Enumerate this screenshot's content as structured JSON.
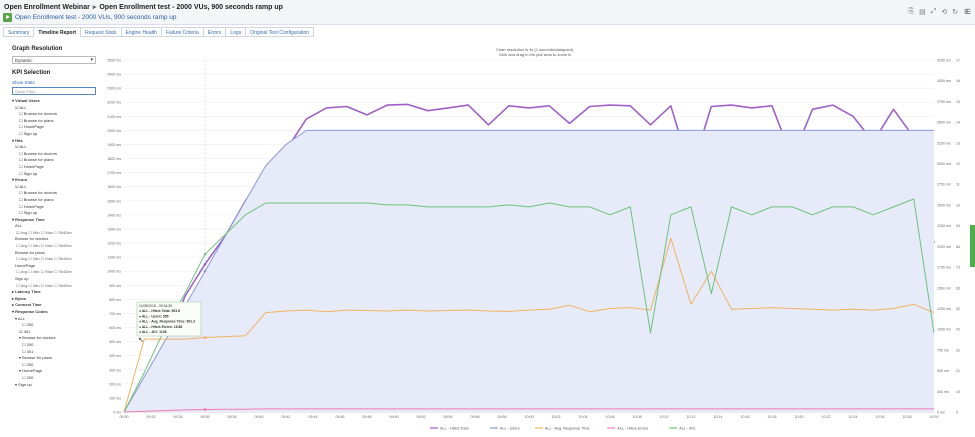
{
  "header": {
    "breadcrumb_root": "Open Enrollment Webinar",
    "breadcrumb_current": "Open Enrollment test - 2000 VUs, 900 seconds ramp up",
    "subtitle": "Open Enrollment test - 2000 VUs, 900 seconds ramp up"
  },
  "tabs": [
    {
      "label": "Summary",
      "active": false
    },
    {
      "label": "Timeline Report",
      "active": true
    },
    {
      "label": "Request Stats",
      "active": false
    },
    {
      "label": "Engine Health",
      "active": false
    },
    {
      "label": "Failure Criteria",
      "active": false
    },
    {
      "label": "Errors",
      "active": false
    },
    {
      "label": "Logs",
      "active": false
    },
    {
      "label": "Original Test Configuration",
      "active": false
    }
  ],
  "sidebar": {
    "graph_resolution_title": "Graph Resolution",
    "graph_resolution_value": "Dynamic",
    "kpi_title": "KPI Selection",
    "show_stats": "Show Stats",
    "filter_placeholder": "Quick Filter...",
    "tree": [
      {
        "t": "▾ Virtual Users",
        "c": "grp"
      },
      {
        "t": "☑ ALL",
        "c": "l1"
      },
      {
        "t": "☐ Browse for doctors",
        "c": "l2"
      },
      {
        "t": "☐ Browse for plans",
        "c": "l2"
      },
      {
        "t": "☐ HomePage",
        "c": "l2"
      },
      {
        "t": "☐ Sign up",
        "c": "l2"
      },
      {
        "t": "▾ Hits",
        "c": "grp"
      },
      {
        "t": "☑ ALL",
        "c": "l1"
      },
      {
        "t": "☐ Browse for doctors",
        "c": "l2"
      },
      {
        "t": "☐ Browse for plans",
        "c": "l2"
      },
      {
        "t": "☐ HomePage",
        "c": "l2"
      },
      {
        "t": "☐ Sign up",
        "c": "l2"
      },
      {
        "t": "▾ Errors",
        "c": "grp"
      },
      {
        "t": "☑ ALL",
        "c": "l1"
      },
      {
        "t": "☐ Browse for doctors",
        "c": "l2"
      },
      {
        "t": "☐ Browse for plans",
        "c": "l2"
      },
      {
        "t": "☐ HomePage",
        "c": "l2"
      },
      {
        "t": "☐ Sign up",
        "c": "l2"
      },
      {
        "t": "▾ Response Time",
        "c": "grp"
      },
      {
        "t": "ALL",
        "c": "l1"
      },
      {
        "t": "☑ Avg  ☐ Min  ☐ Max  ☐ StdDev",
        "c": "opts"
      },
      {
        "t": "Browse for doctors",
        "c": "l1"
      },
      {
        "t": "☐ Avg  ☐ Min  ☐ Max  ☐ StdDev",
        "c": "opts"
      },
      {
        "t": "Browse for plans",
        "c": "l1"
      },
      {
        "t": "☐ Avg  ☐ Min  ☐ Max  ☐ StdDev",
        "c": "opts"
      },
      {
        "t": "HomePage",
        "c": "l1"
      },
      {
        "t": "☐ Avg  ☐ Min  ☐ Max  ☐ StdDev",
        "c": "opts"
      },
      {
        "t": "Sign up",
        "c": "l1"
      },
      {
        "t": "☐ Avg  ☐ Min  ☐ Max  ☐ StdDev",
        "c": "opts"
      },
      {
        "t": "▸ Latency Time",
        "c": "grp"
      },
      {
        "t": "▸ Bytes",
        "c": "grp"
      },
      {
        "t": "▸ Connect Time",
        "c": "grp"
      },
      {
        "t": "▾ Response Codes",
        "c": "grp"
      },
      {
        "t": "▾ ALL",
        "c": "l1"
      },
      {
        "t": "☐ 200",
        "c": "l3"
      },
      {
        "t": "☑ 401",
        "c": "l2"
      },
      {
        "t": "▾ Browse for doctors",
        "c": "l2"
      },
      {
        "t": "☐ 200",
        "c": "l3"
      },
      {
        "t": "☐ 401",
        "c": "l3"
      },
      {
        "t": "▾ Browse for plans",
        "c": "l2"
      },
      {
        "t": "☐ 200",
        "c": "l3"
      },
      {
        "t": "▾ HomePage",
        "c": "l2"
      },
      {
        "t": "☐ 200",
        "c": "l3"
      },
      {
        "t": "▾ Sign up",
        "c": "l1"
      }
    ]
  },
  "chart_note": {
    "line1": "Chart resolution is 4s (1 seconds/datapoint).",
    "line2": "Click and drag in the plot area to zoom in"
  },
  "tooltip": {
    "lines": [
      "11/08/2018 - 09:34:35",
      "● ALL - Hits/s Total: 503.8",
      "● ALL - Users: 655",
      "● ALL - Avg. Response Time: 891.3",
      "● ALL - Hits/s Errors: 18.88",
      "● ALL - 401: 1138"
    ]
  },
  "chart_data": {
    "type": "line",
    "x_tick_labels": [
      "09:30",
      "09:32",
      "09:34",
      "09:36",
      "09:38",
      "09:40",
      "09:42",
      "09:44",
      "09:46",
      "09:48",
      "09:50",
      "09:52",
      "09:54",
      "09:56",
      "09:58",
      "10:00",
      "10:02",
      "10:04",
      "10:06",
      "10:08",
      "10:10",
      "10:12",
      "10:14",
      "10:16",
      "10:18",
      "10:20",
      "10:22",
      "10:24",
      "10:26",
      "10:28",
      "10:30"
    ],
    "y_left_ticks": [
      "0 ms",
      "100 ms",
      "200 ms",
      "300 ms",
      "400 ms",
      "500 ms",
      "600 ms",
      "700 ms",
      "800 ms",
      "900 ms",
      "1000 ms",
      "1100 ms",
      "1200 ms",
      "1300 ms",
      "1400 ms",
      "1500 ms",
      "1600 ms",
      "1700 ms",
      "1800 ms",
      "1900 ms",
      "2000 ms",
      "2100 ms",
      "2200 ms",
      "2300 ms",
      "2400 ms",
      "2500 ms"
    ],
    "y_right1_ticks": [
      "0 ms",
      "250 ms",
      "500 ms",
      "750 ms",
      "1000 ms",
      "1250 ms",
      "1500 ms",
      "1750 ms",
      "2000 ms",
      "2250 ms",
      "2500 ms",
      "2750 ms",
      "3000 ms",
      "3250 ms",
      "3500 ms",
      "3750 ms",
      "4000 ms",
      "4250 ms"
    ],
    "y_right2_ticks": [
      "0",
      "105",
      "210",
      "315",
      "420",
      "525",
      "630",
      "735",
      "840",
      "945",
      "1050",
      "1155",
      "1260",
      "1365",
      "1470",
      "1575",
      "1680",
      "1785"
    ],
    "x": [
      0,
      3,
      6,
      9,
      12,
      15,
      18,
      21,
      24,
      27,
      30,
      33,
      36,
      39,
      42,
      45,
      48,
      51,
      54,
      57,
      60,
      63,
      66,
      69,
      72,
      75,
      78,
      81,
      84,
      87,
      90,
      93,
      96,
      99,
      102,
      105,
      108,
      111,
      114,
      117,
      120
    ],
    "series": [
      {
        "name": "ALL - Hits/s Total",
        "color": "#a060c8",
        "axis": "left",
        "values": [
          0,
          180,
          420,
          820,
          1050,
          1250,
          1500,
          1700,
          1860,
          2080,
          2160,
          2170,
          2110,
          2180,
          2185,
          2140,
          2160,
          2180,
          2040,
          2175,
          2160,
          2175,
          2050,
          2170,
          2180,
          2175,
          2040,
          2175,
          1700,
          2170,
          2180,
          2160,
          2175,
          1800,
          2150,
          2180,
          2100,
          1920,
          2150,
          1950,
          1200
        ]
      },
      {
        "name": "ALL - Users",
        "color": "#8a9ad8",
        "axis": "left",
        "values": [
          0,
          250,
          500,
          750,
          1000,
          1250,
          1500,
          1750,
          1900,
          2000,
          2000,
          2000,
          2000,
          2000,
          2000,
          2000,
          2000,
          2000,
          2000,
          2000,
          2000,
          2000,
          2000,
          2000,
          2000,
          2000,
          2000,
          2000,
          2000,
          2000,
          2000,
          2000,
          2000,
          2000,
          2000,
          2000,
          2000,
          2000,
          2000,
          2000,
          2000
        ]
      },
      {
        "name": "ALL - Avg. Response Time",
        "color": "#f0b260",
        "axis": "right1",
        "values": [
          0,
          880,
          880,
          880,
          900,
          910,
          920,
          1200,
          1220,
          1230,
          1210,
          1230,
          1225,
          1220,
          1230,
          1220,
          1225,
          1230,
          1220,
          1215,
          1230,
          1240,
          1290,
          1210,
          1250,
          1260,
          1230,
          2100,
          1300,
          1700,
          1240,
          1250,
          1260,
          1250,
          1240,
          1230,
          1240,
          1230,
          1250,
          1300,
          1200
        ]
      },
      {
        "name": "ALL - Hits/s Errors",
        "color": "#ee7ab8",
        "axis": "left",
        "values": [
          0,
          5,
          10,
          15,
          18,
          20,
          20,
          22,
          22,
          22,
          22,
          22,
          22,
          22,
          22,
          22,
          22,
          22,
          22,
          22,
          22,
          22,
          22,
          22,
          22,
          22,
          22,
          22,
          22,
          22,
          22,
          22,
          22,
          22,
          22,
          22,
          22,
          22,
          22,
          22,
          22
        ]
      },
      {
        "name": "ALL - 401",
        "color": "#6cc27a",
        "axis": "right2",
        "values": [
          0,
          200,
          420,
          600,
          800,
          900,
          1000,
          1060,
          1060,
          1060,
          1060,
          1060,
          1060,
          1050,
          1050,
          1040,
          1040,
          1040,
          1040,
          1050,
          1040,
          1060,
          1040,
          1040,
          1000,
          1040,
          400,
          1000,
          1040,
          600,
          1040,
          1000,
          1040,
          1040,
          1000,
          1040,
          1040,
          1000,
          1040,
          1080,
          400
        ]
      }
    ],
    "legend": [
      "ALL - Hits/s Total",
      "ALL - Users",
      "ALL - Avg. Response Time",
      "ALL - Hits/s Errors",
      "ALL - 401"
    ],
    "legend_position": "bottom",
    "grid": true
  }
}
